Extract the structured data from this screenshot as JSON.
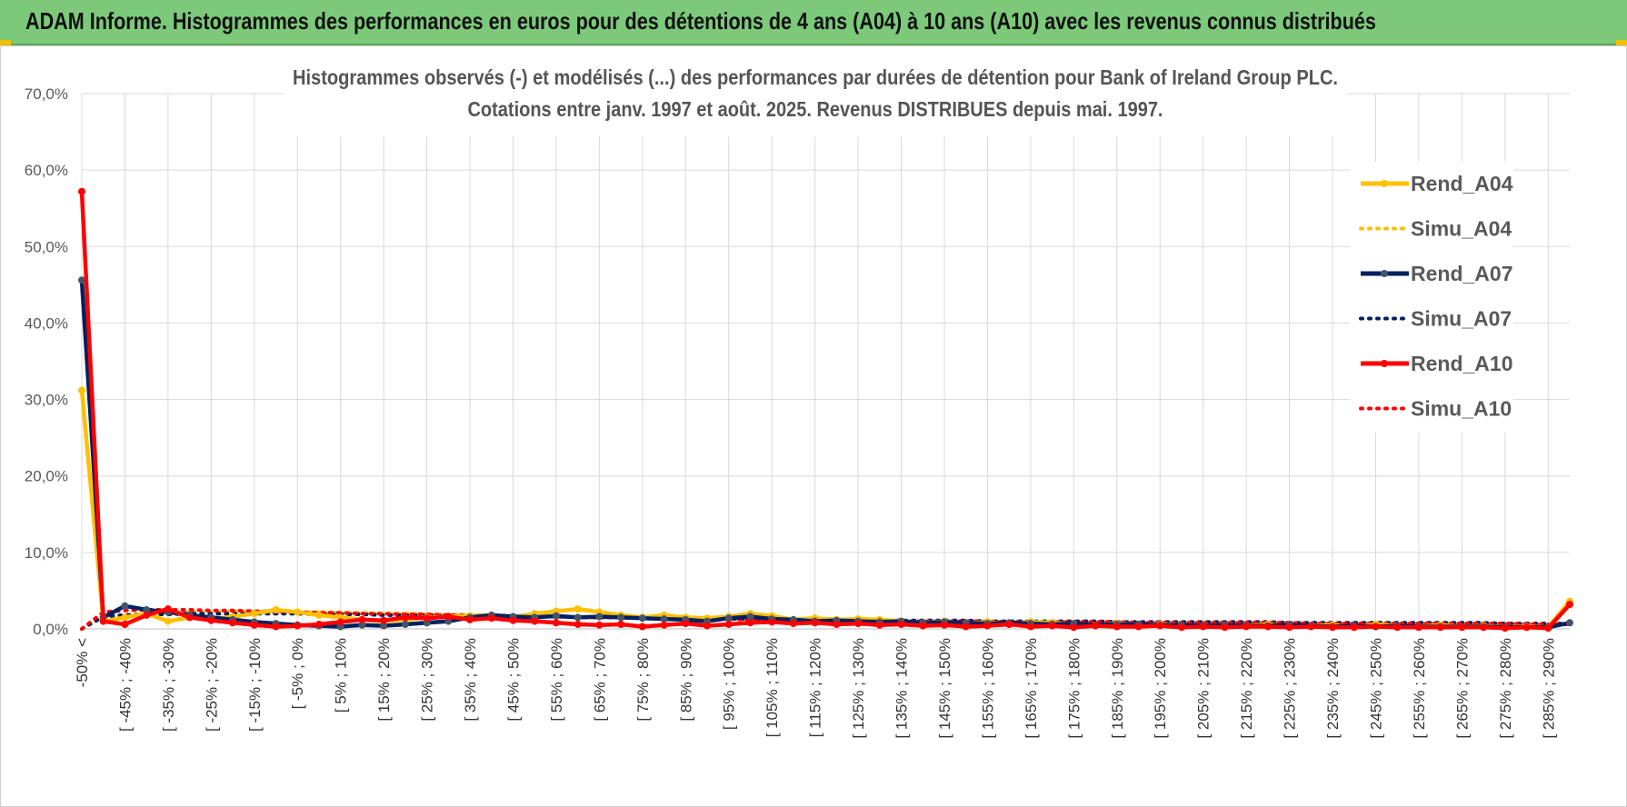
{
  "header": {
    "title": "ADAM Informe. Histogrammes des performances en euros pour des détentions de 4 ans (A04) à 10 ans (A10) avec les revenus connus distribués"
  },
  "chart_data": {
    "type": "line",
    "title": "Histogrammes observés (-) et modélisés (...) des performances par durées de détention pour Bank of Ireland Group PLC.",
    "subtitle": "Cotations entre janv. 1997 et août. 2025. Revenus DISTRIBUES depuis mai. 1997.",
    "xlabel": "",
    "ylabel": "",
    "ylim": [
      0,
      70
    ],
    "y_unit": "%",
    "y_ticks": [
      "0,0%",
      "10,0%",
      "20,0%",
      "30,0%",
      "40,0%",
      "50,0%",
      "60,0%",
      "70,0%"
    ],
    "grid": true,
    "legend_position": "right",
    "x_tick_labels": [
      "-50% <",
      "[ -45% ; -40%",
      "[ -35% ; -30%",
      "[ -25% ; -20%",
      "[ -15% ; -10%",
      "[ -5% ; 0%",
      "[ 5% ; 10%",
      "[ 15% ; 20%",
      "[ 25% ; 30%",
      "[ 35% ; 40%",
      "[ 45% ; 50%",
      "[ 55% ; 60%",
      "[ 65% ; 70%",
      "[ 75% ; 80%",
      "[ 85% ; 90%",
      "[ 95% ; 100%",
      "[ 105% ; 110%",
      "[ 115% ; 120%",
      "[ 125% ; 130%",
      "[ 135% ; 140%",
      "[ 145% ; 150%",
      "[ 155% ; 160%",
      "[ 165% ; 170%",
      "[ 175% ; 180%",
      "[ 185% ; 190%",
      "[ 195% ; 200%",
      "[ 205% ; 210%",
      "[ 215% ; 220%",
      "[ 225% ; 230%",
      "[ 235% ; 240%",
      "[ 245% ; 250%",
      "[ 255% ; 260%",
      "[ 265% ; 270%",
      "[ 275% ; 280%",
      "[ 285% ; 290%"
    ],
    "n_bins": 70,
    "series": [
      {
        "name": "Rend_A04",
        "color": "#ffc000",
        "style": "solid",
        "marker": true,
        "values": [
          31.2,
          1.0,
          1.5,
          2.0,
          1.0,
          1.5,
          1.3,
          1.6,
          2.0,
          2.5,
          2.2,
          1.8,
          1.5,
          1.2,
          1.0,
          1.2,
          1.5,
          1.6,
          1.7,
          1.8,
          1.5,
          2.0,
          2.3,
          2.6,
          2.2,
          1.8,
          1.5,
          1.8,
          1.5,
          1.4,
          1.6,
          2.0,
          1.7,
          1.2,
          1.4,
          1.2,
          1.3,
          1.2,
          1.0,
          0.8,
          1.0,
          0.7,
          0.9,
          0.6,
          0.9,
          0.8,
          0.6,
          0.4,
          0.7,
          0.5,
          0.6,
          0.5,
          0.4,
          0.5,
          0.4,
          0.6,
          0.3,
          0.4,
          0.5,
          0.2,
          0.6,
          0.4,
          0.3,
          0.5,
          0.3,
          0.4,
          0.2,
          0.3,
          0.2,
          3.6
        ]
      },
      {
        "name": "Simu_A04",
        "color": "#ffc000",
        "style": "dotted",
        "marker": false,
        "values": [
          0.0,
          1.6,
          1.8,
          2.0,
          2.1,
          2.2,
          2.2,
          2.3,
          2.3,
          2.3,
          2.2,
          2.2,
          2.1,
          2.1,
          2.0,
          2.0,
          1.9,
          1.9,
          1.8,
          1.8,
          1.7,
          1.7,
          1.6,
          1.6,
          1.5,
          1.5,
          1.4,
          1.4,
          1.4,
          1.3,
          1.3,
          1.3,
          1.2,
          1.2,
          1.2,
          1.1,
          1.1,
          1.1,
          1.0,
          1.0,
          1.0,
          1.0,
          0.9,
          0.9,
          0.9,
          0.9,
          0.9,
          0.8,
          0.8,
          0.8,
          0.8,
          0.8,
          0.8,
          0.7,
          0.7,
          0.7,
          0.7,
          0.7,
          0.7,
          0.7,
          0.6,
          0.6,
          0.6,
          0.6,
          0.6,
          0.6,
          0.6,
          0.6,
          0.6,
          0.6
        ]
      },
      {
        "name": "Rend_A07",
        "color": "#002060",
        "style": "solid",
        "marker": true,
        "values": [
          45.6,
          1.5,
          3.0,
          2.5,
          2.2,
          1.8,
          1.5,
          1.2,
          0.9,
          0.7,
          0.5,
          0.4,
          0.3,
          0.5,
          0.4,
          0.6,
          0.8,
          1.0,
          1.5,
          1.8,
          1.6,
          1.5,
          1.7,
          1.5,
          1.6,
          1.5,
          1.4,
          1.3,
          1.2,
          1.0,
          1.4,
          1.6,
          1.3,
          1.2,
          1.0,
          1.1,
          1.0,
          0.9,
          1.0,
          0.8,
          0.9,
          0.8,
          0.7,
          0.8,
          0.7,
          0.6,
          0.7,
          0.5,
          0.6,
          0.6,
          0.5,
          0.5,
          0.4,
          0.5,
          0.4,
          0.4,
          0.5,
          0.4,
          0.3,
          0.4,
          0.3,
          0.4,
          0.3,
          0.3,
          0.3,
          0.3,
          0.2,
          0.2,
          0.2,
          0.8
        ]
      },
      {
        "name": "Simu_A07",
        "color": "#002060",
        "style": "dotted",
        "marker": false,
        "values": [
          0.0,
          1.6,
          1.8,
          1.9,
          1.9,
          2.0,
          2.0,
          2.0,
          2.0,
          2.0,
          2.0,
          1.9,
          1.9,
          1.9,
          1.8,
          1.8,
          1.8,
          1.7,
          1.7,
          1.7,
          1.6,
          1.6,
          1.6,
          1.5,
          1.5,
          1.5,
          1.4,
          1.4,
          1.4,
          1.3,
          1.3,
          1.3,
          1.3,
          1.2,
          1.2,
          1.2,
          1.2,
          1.1,
          1.1,
          1.1,
          1.1,
          1.1,
          1.0,
          1.0,
          1.0,
          1.0,
          1.0,
          1.0,
          0.9,
          0.9,
          0.9,
          0.9,
          0.9,
          0.9,
          0.9,
          0.9,
          0.8,
          0.8,
          0.8,
          0.8,
          0.8,
          0.8,
          0.8,
          0.8,
          0.8,
          0.8,
          0.7,
          0.7,
          0.7,
          0.7
        ]
      },
      {
        "name": "Rend_A10",
        "color": "#ff0000",
        "style": "solid",
        "marker": true,
        "values": [
          57.2,
          1.0,
          0.6,
          1.8,
          2.6,
          1.5,
          1.1,
          0.8,
          0.5,
          0.3,
          0.4,
          0.6,
          0.9,
          1.2,
          1.1,
          1.5,
          1.4,
          1.6,
          1.2,
          1.4,
          1.1,
          1.0,
          0.8,
          0.6,
          0.5,
          0.6,
          0.3,
          0.5,
          0.7,
          0.4,
          0.6,
          0.8,
          0.9,
          0.7,
          0.8,
          0.6,
          0.7,
          0.5,
          0.6,
          0.4,
          0.5,
          0.3,
          0.4,
          0.6,
          0.3,
          0.4,
          0.2,
          0.4,
          0.3,
          0.3,
          0.4,
          0.2,
          0.3,
          0.2,
          0.3,
          0.3,
          0.2,
          0.3,
          0.2,
          0.2,
          0.3,
          0.2,
          0.2,
          0.2,
          0.2,
          0.2,
          0.1,
          0.2,
          0.1,
          3.2
        ]
      },
      {
        "name": "Simu_A10",
        "color": "#ff0000",
        "style": "dotted",
        "marker": false,
        "values": [
          0.0,
          2.2,
          2.4,
          2.5,
          2.5,
          2.5,
          2.4,
          2.4,
          2.3,
          2.3,
          2.2,
          2.1,
          2.1,
          2.0,
          2.0,
          1.9,
          1.9,
          1.8,
          1.8,
          1.7,
          1.7,
          1.6,
          1.6,
          1.5,
          1.5,
          1.5,
          1.4,
          1.4,
          1.3,
          1.3,
          1.3,
          1.2,
          1.2,
          1.2,
          1.1,
          1.1,
          1.1,
          1.1,
          1.0,
          1.0,
          1.0,
          1.0,
          1.0,
          0.9,
          0.9,
          0.9,
          0.9,
          0.9,
          0.9,
          0.8,
          0.8,
          0.8,
          0.8,
          0.8,
          0.8,
          0.8,
          0.8,
          0.7,
          0.7,
          0.7,
          0.7,
          0.7,
          0.7,
          0.7,
          0.7,
          0.7,
          0.7,
          0.6,
          0.6,
          0.6
        ]
      }
    ]
  }
}
